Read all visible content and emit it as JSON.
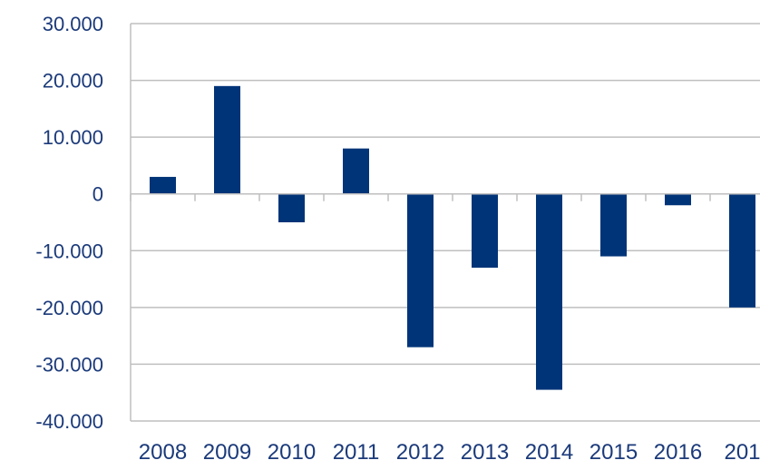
{
  "chart_data": {
    "type": "bar",
    "categories": [
      "2008",
      "2009",
      "2010",
      "2011",
      "2012",
      "2013",
      "2014",
      "2015",
      "2016",
      "201"
    ],
    "values": [
      3000,
      19000,
      -5000,
      8000,
      -27000,
      -13000,
      -34500,
      -11000,
      -2000,
      -20000
    ],
    "y_tick_labels": [
      "30.000",
      "20.000",
      "10.000",
      "0",
      "-10.000",
      "-20.000",
      "-30.000",
      "-40.000"
    ],
    "y_ticks": [
      30000,
      20000,
      10000,
      0,
      -10000,
      -20000,
      -30000,
      -40000
    ],
    "ylim": [
      -40000,
      30000
    ],
    "title": "",
    "xlabel": "",
    "ylabel": "",
    "grid": true,
    "legend": "none",
    "bar_color": "#003478",
    "grid_color": "#bfbfbf",
    "label_color": "#1b3a7a"
  }
}
